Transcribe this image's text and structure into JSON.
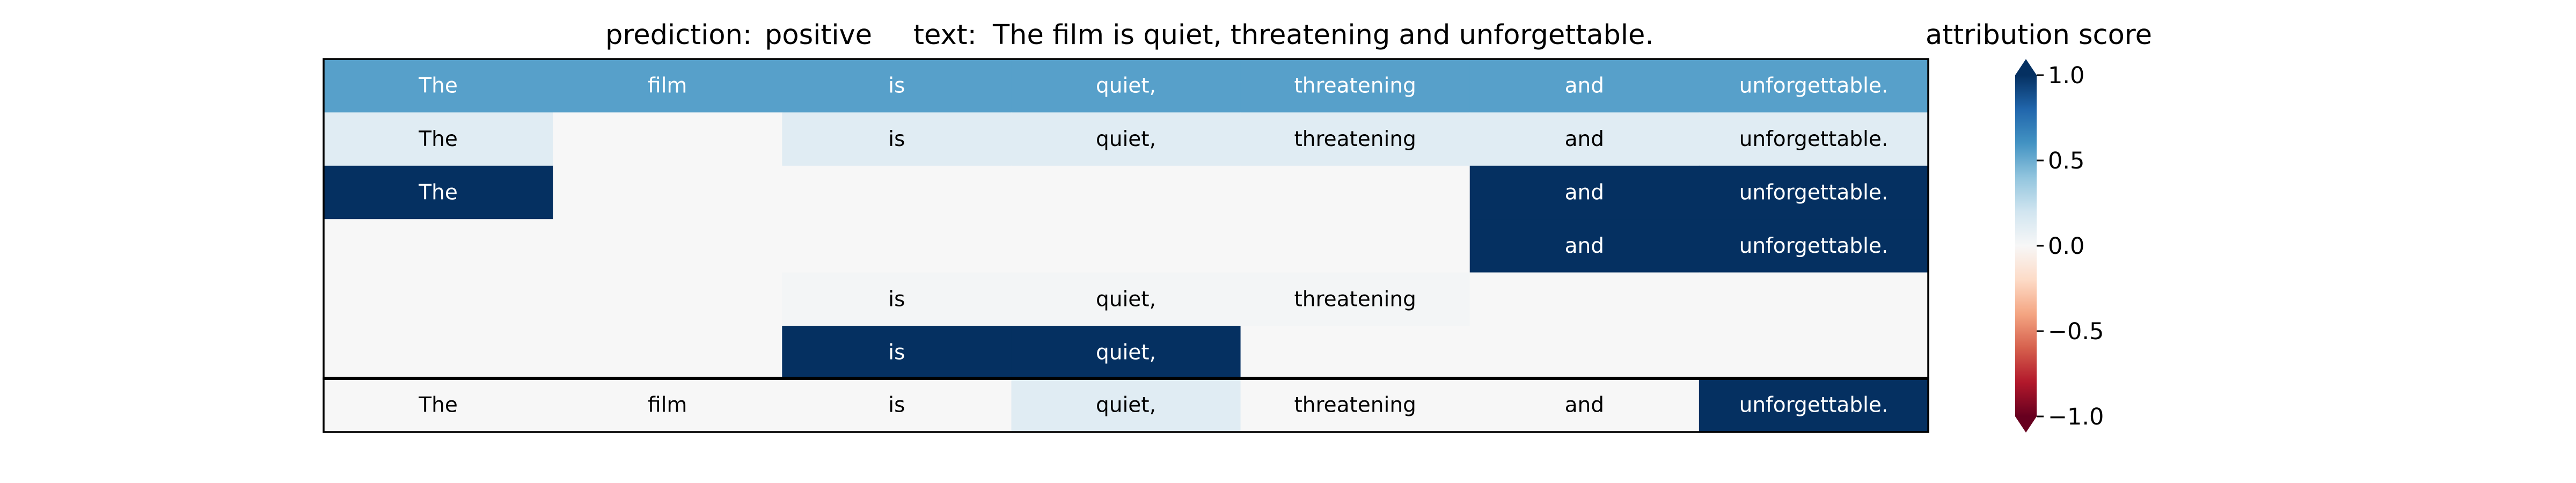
{
  "header": {
    "prediction_label": "prediction:",
    "prediction_value": "positive",
    "text_label": "text:",
    "text_value": "The film is quiet, threatening and unforgettable.",
    "colorbar_title": "attribution score"
  },
  "chart_data": {
    "type": "heatmap",
    "tokens": [
      "The",
      "film",
      "is",
      "quiet,",
      "threatening",
      "and",
      "unforgettable."
    ],
    "rows": [
      [
        0.55,
        0.55,
        0.55,
        0.55,
        0.55,
        0.55,
        0.55
      ],
      [
        0.12,
        0.0,
        0.12,
        0.12,
        0.12,
        0.12,
        0.12
      ],
      [
        1.0,
        0.0,
        0.0,
        0.0,
        0.0,
        1.0,
        1.0
      ],
      [
        0.0,
        0.0,
        0.0,
        0.0,
        0.0,
        1.0,
        1.0
      ],
      [
        0.0,
        0.0,
        0.02,
        0.02,
        0.02,
        0.0,
        0.0
      ],
      [
        0.0,
        0.0,
        1.0,
        1.0,
        0.0,
        0.0,
        0.0
      ]
    ],
    "visible": [
      [
        true,
        true,
        true,
        true,
        true,
        true,
        true
      ],
      [
        true,
        false,
        true,
        true,
        true,
        true,
        true
      ],
      [
        true,
        false,
        false,
        false,
        false,
        true,
        true
      ],
      [
        false,
        false,
        false,
        false,
        false,
        true,
        true
      ],
      [
        false,
        false,
        true,
        true,
        true,
        false,
        false
      ],
      [
        false,
        false,
        true,
        true,
        false,
        false,
        false
      ]
    ],
    "summary_row": [
      0.0,
      0.0,
      0.0,
      0.12,
      0.0,
      0.0,
      1.0
    ],
    "colorbar": {
      "colormap": "RdBu",
      "vmin": -1.0,
      "vmax": 1.0,
      "ticks": [
        1.0,
        0.5,
        0.0,
        -0.5,
        -1.0
      ],
      "tick_labels": [
        "1.0",
        "0.5",
        "0.0",
        "−0.5",
        "−1.0"
      ]
    }
  }
}
